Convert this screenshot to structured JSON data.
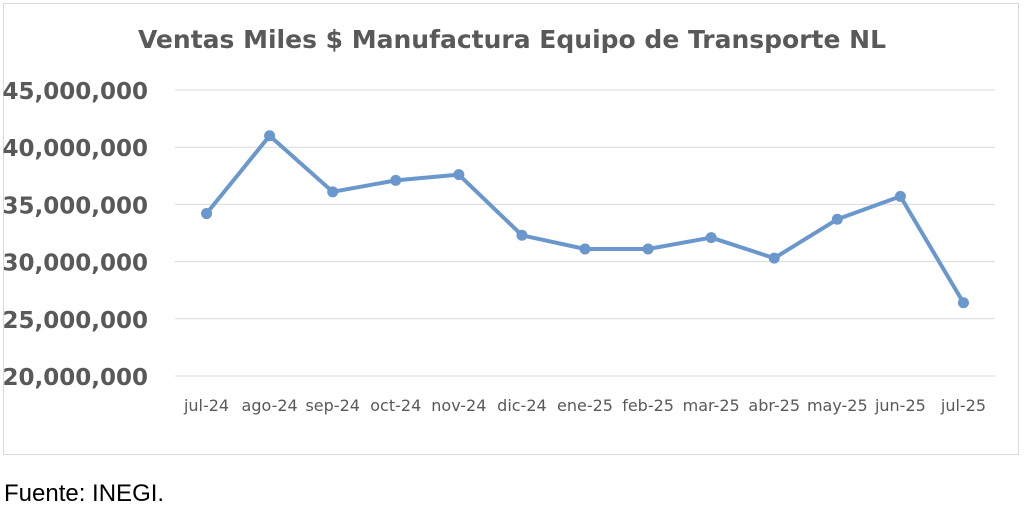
{
  "chart_data": {
    "type": "line",
    "title": "Ventas Miles $ Manufactura Equipo de Transporte NL",
    "xlabel": "",
    "ylabel": "",
    "categories": [
      "jul-24",
      "ago-24",
      "sep-24",
      "oct-24",
      "nov-24",
      "dic-24",
      "ene-25",
      "feb-25",
      "mar-25",
      "abr-25",
      "may-25",
      "jun-25",
      "jul-25"
    ],
    "series": [
      {
        "values": [
          34200000,
          41000000,
          36100000,
          37100000,
          37600000,
          32300000,
          31100000,
          31100000,
          32100000,
          30300000,
          33700000,
          35700000,
          26400000
        ]
      }
    ],
    "ylim": [
      20000000,
      45000000
    ],
    "yticks": [
      20000000,
      25000000,
      30000000,
      35000000,
      40000000,
      45000000
    ],
    "ytick_labels": [
      "20,000,000",
      "25,000,000",
      "30,000,000",
      "35,000,000",
      "40,000,000",
      "45,000,000"
    ],
    "grid": true,
    "legend": "none",
    "colors": {
      "line": "#6a97cc",
      "grid": "#d9d9d9",
      "text": "#595959"
    }
  },
  "source": "Fuente: INEGI."
}
